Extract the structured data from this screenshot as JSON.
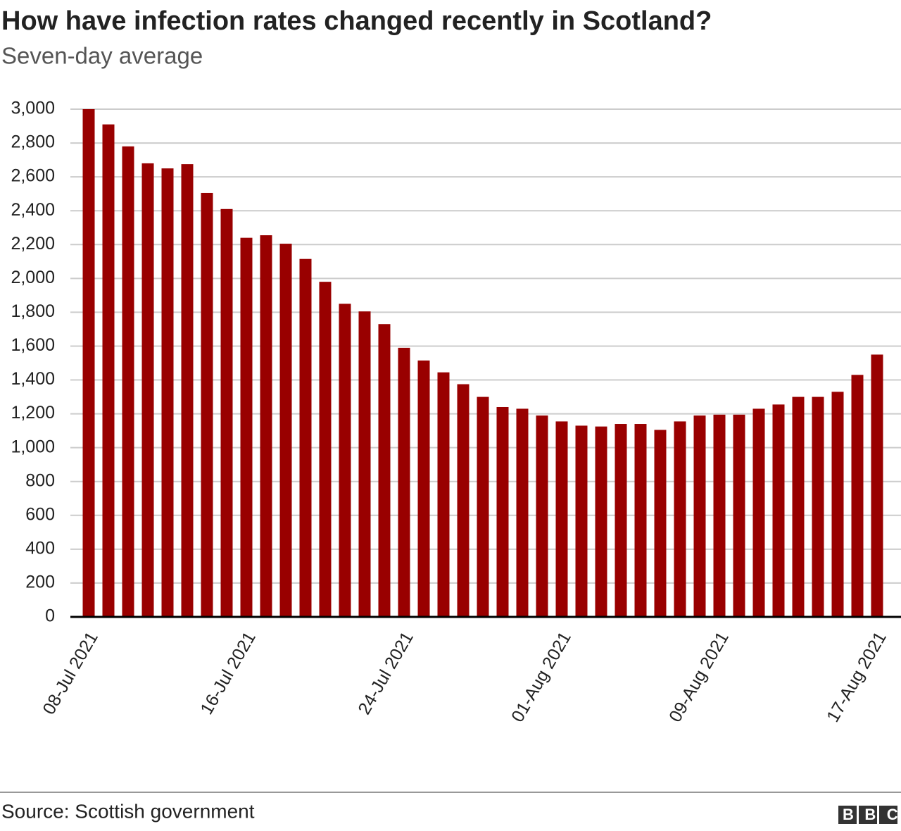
{
  "chart_data": {
    "type": "bar",
    "title": "How have infection rates changed recently in Scotland?",
    "subtitle": "Seven-day average",
    "source": "Source: Scottish government",
    "categories": [
      "08-Jul 2021",
      null,
      null,
      null,
      null,
      null,
      null,
      null,
      "16-Jul 2021",
      null,
      null,
      null,
      null,
      null,
      null,
      null,
      "24-Jul 2021",
      null,
      null,
      null,
      null,
      null,
      null,
      null,
      "01-Aug 2021",
      null,
      null,
      null,
      null,
      null,
      null,
      null,
      "09-Aug 2021",
      null,
      null,
      null,
      null,
      null,
      null,
      null,
      "17-Aug 2021"
    ],
    "values": [
      3000,
      2910,
      2780,
      2680,
      2650,
      2675,
      2505,
      2410,
      2240,
      2255,
      2205,
      2115,
      1980,
      1850,
      1805,
      1730,
      1590,
      1515,
      1445,
      1375,
      1300,
      1240,
      1230,
      1190,
      1155,
      1130,
      1125,
      1140,
      1140,
      1105,
      1155,
      1190,
      1195,
      1195,
      1230,
      1255,
      1300,
      1300,
      1330,
      1430,
      1550
    ],
    "color": "#990000",
    "ylim": [
      0,
      3000
    ],
    "yticks": [
      0,
      200,
      400,
      600,
      800,
      {
        "value": 1000,
        "label": "1,000"
      },
      {
        "value": 1200,
        "label": "1,200"
      },
      {
        "value": 1400,
        "label": "1,400"
      },
      {
        "value": 1600,
        "label": "1,600"
      },
      {
        "value": 1800,
        "label": "1,800"
      },
      {
        "value": 2000,
        "label": "2,000"
      },
      {
        "value": 2200,
        "label": "2,200"
      },
      {
        "value": 2400,
        "label": "2,400"
      },
      {
        "value": 2600,
        "label": "2,600"
      },
      {
        "value": 2800,
        "label": "2,800"
      },
      {
        "value": 3000,
        "label": "3,000"
      }
    ],
    "grid": true
  },
  "logo": "BBC"
}
